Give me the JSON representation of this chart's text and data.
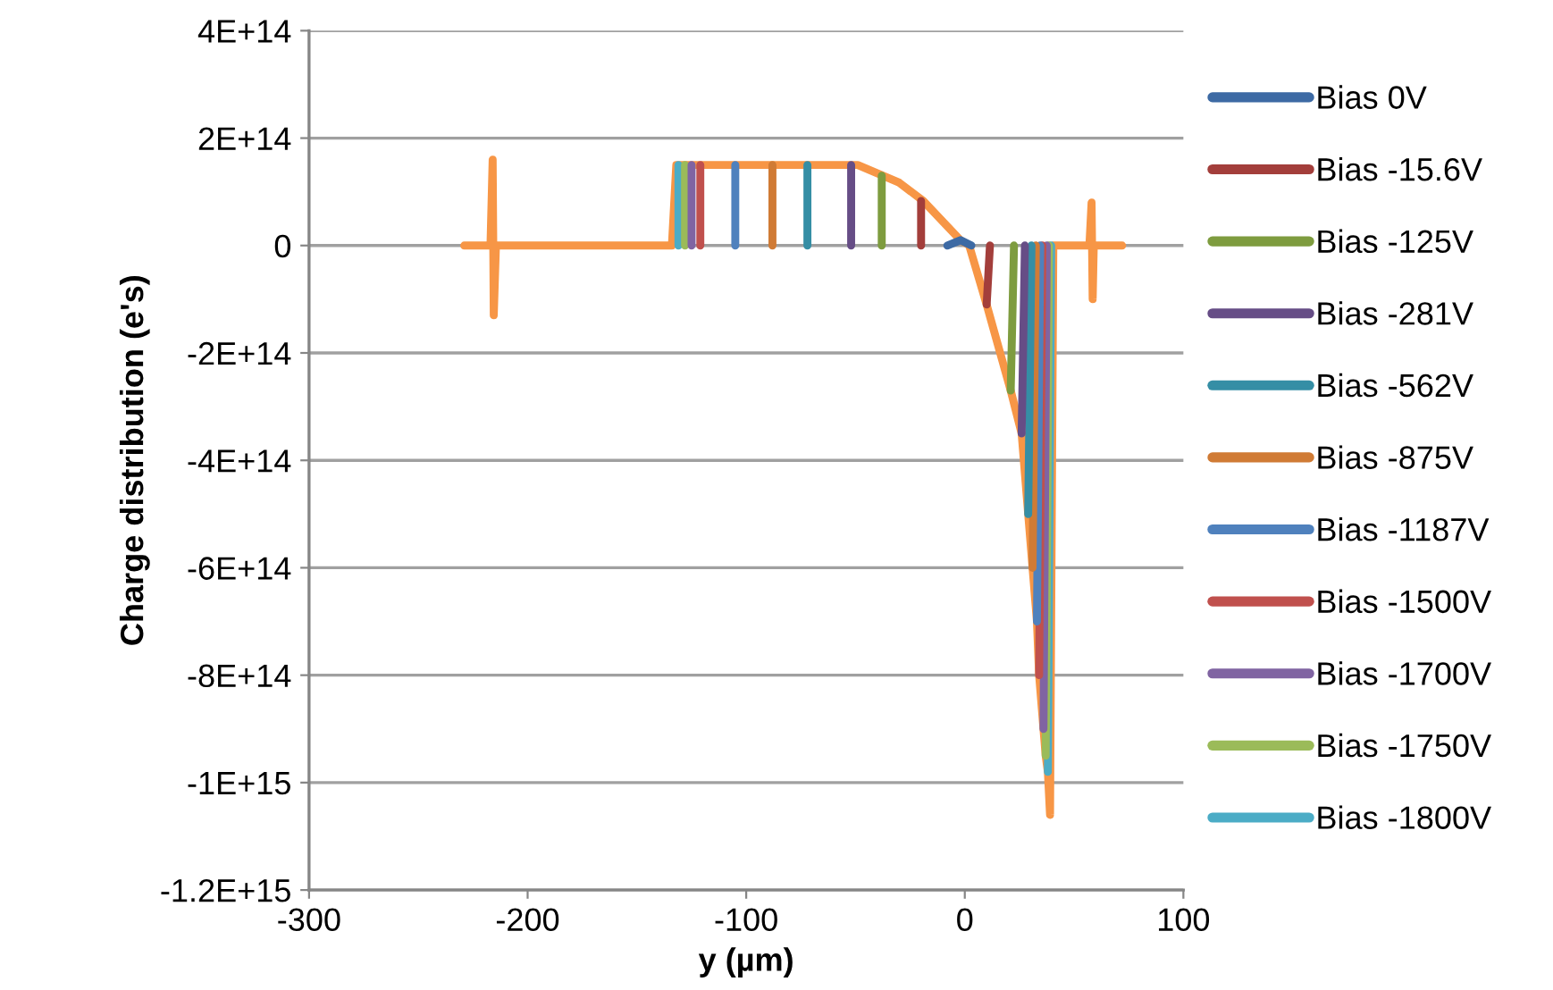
{
  "chart_data": {
    "type": "line",
    "xlabel": "y (µm)",
    "ylabel": "Charge distribution (e's)",
    "xlim": [
      -300,
      100
    ],
    "xticks": [
      -300,
      -200,
      -100,
      0,
      100
    ],
    "ylim": [
      -1200000000000000.0,
      400000000000000.0
    ],
    "yticks": [
      {
        "value": 400000000000000.0,
        "label": "4E+14"
      },
      {
        "value": 200000000000000.0,
        "label": "2E+14"
      },
      0,
      {
        "value": -200000000000000.0,
        "label": "-2E+14"
      },
      {
        "value": -400000000000000.0,
        "label": "-4E+14"
      },
      {
        "value": -600000000000000.0,
        "label": "-6E+14"
      },
      {
        "value": -800000000000000.0,
        "label": "-8E+14"
      },
      {
        "value": -1000000000000000.0,
        "label": "-1E+15"
      },
      {
        "value": -1200000000000000.0,
        "label": "-1.2E+15"
      }
    ],
    "grid": "y",
    "legend": "right",
    "marker": "none",
    "line_style": "solid",
    "series": [
      {
        "color": "#f79646",
        "x": [
          -229,
          -217,
          -216,
          -215.5,
          -214.5,
          -134,
          -132,
          -49,
          -30,
          -19,
          -2,
          2,
          10,
          21,
          26,
          29,
          31,
          33,
          34,
          36,
          37,
          38,
          39,
          40.5,
          57,
          58,
          58.5,
          59,
          72
        ],
        "values": [
          0,
          0,
          160000000000000.0,
          -130000000000000.0,
          0,
          0,
          150000000000000.0,
          150000000000000.0,
          117000000000000.0,
          83000000000000.0,
          10000000000000.0,
          0,
          -110000000000000.0,
          -270000000000000.0,
          -350000000000000.0,
          -500000000000000.0,
          -600000000000000.0,
          -700000000000000.0,
          -800000000000000.0,
          -900000000000000.0,
          -950000000000000.0,
          -980000000000000.0,
          -1060000000000000.0,
          0,
          0,
          80000000000000.0,
          -100000000000000.0,
          0,
          0
        ]
      },
      {
        "name": "Bias -1800V",
        "color": "#4bacc6",
        "x": [
          -131,
          -131,
          0,
          38,
          39.5
        ],
        "values": [
          0,
          150000000000000.0,
          null,
          -980000000000000.0,
          0
        ]
      },
      {
        "name": "Bias -1750V",
        "color": "#9bbb59",
        "x": [
          -128,
          -128,
          0,
          37,
          38.5
        ],
        "values": [
          0,
          150000000000000.0,
          null,
          -950000000000000.0,
          0
        ]
      },
      {
        "name": "Bias -1700V",
        "color": "#8064a2",
        "x": [
          -125,
          -125,
          0,
          36,
          37.5
        ],
        "values": [
          0,
          150000000000000.0,
          null,
          -900000000000000.0,
          0
        ]
      },
      {
        "name": "Bias -1500V",
        "color": "#c0504d",
        "x": [
          -121,
          -121,
          0,
          34,
          35.5
        ],
        "values": [
          0,
          150000000000000.0,
          null,
          -800000000000000.0,
          0
        ]
      },
      {
        "name": "Bias -1187V",
        "color": "#4f81bd",
        "x": [
          -105,
          -105,
          0,
          33,
          34.5
        ],
        "values": [
          0,
          150000000000000.0,
          null,
          -700000000000000.0,
          0
        ]
      },
      {
        "name": "Bias -875V",
        "color": "#d07b35",
        "x": [
          -88,
          -88,
          0,
          31,
          32.5
        ],
        "values": [
          0,
          150000000000000.0,
          null,
          -600000000000000.0,
          0
        ]
      },
      {
        "name": "Bias -562V",
        "color": "#358ea5",
        "x": [
          -72,
          -72,
          0,
          29,
          30.5
        ],
        "values": [
          0,
          150000000000000.0,
          null,
          -500000000000000.0,
          0
        ]
      },
      {
        "name": "Bias -281V",
        "color": "#664d86",
        "x": [
          -52,
          -52,
          0,
          26,
          27.5
        ],
        "values": [
          0,
          150000000000000.0,
          null,
          -350000000000000.0,
          0
        ]
      },
      {
        "name": "Bias -125V",
        "color": "#7e9c3f",
        "x": [
          -38,
          -38,
          0,
          21,
          22.5
        ],
        "values": [
          0,
          130000000000000.0,
          null,
          -270000000000000.0,
          0
        ]
      },
      {
        "name": "Bias -15.6V",
        "color": "#a33e3b",
        "x": [
          -20,
          -20,
          0,
          10,
          11.5
        ],
        "values": [
          0,
          83000000000000.0,
          null,
          -110000000000000.0,
          0
        ]
      },
      {
        "name": "Bias 0V",
        "color": "#3d6aa4",
        "x": [
          -8,
          -2,
          3
        ],
        "values": [
          0,
          10000000000000.0,
          0
        ]
      }
    ]
  }
}
